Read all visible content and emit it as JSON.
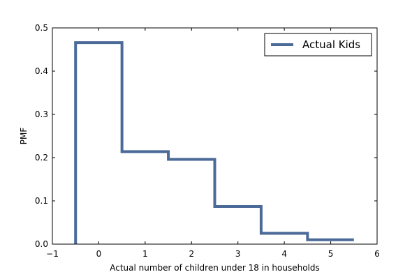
{
  "chart_data": {
    "type": "line",
    "xlabel": "Actual number of children under 18 in households",
    "ylabel": "PMF",
    "xlim": [
      -1,
      6
    ],
    "ylim": [
      0,
      0.5
    ],
    "x_ticks": [
      "−1",
      "0",
      "1",
      "2",
      "3",
      "4",
      "5",
      "6"
    ],
    "y_ticks": [
      "0.0",
      "0.1",
      "0.2",
      "0.3",
      "0.4",
      "0.5"
    ],
    "grid": false,
    "legend_position": "top-right",
    "step_style": "mid",
    "series": [
      {
        "name": "Actual Kids",
        "color": "#4c6a98",
        "x": [
          0,
          1,
          2,
          3,
          4,
          5
        ],
        "y": [
          0.466,
          0.214,
          0.196,
          0.087,
          0.025,
          0.01
        ]
      }
    ]
  }
}
